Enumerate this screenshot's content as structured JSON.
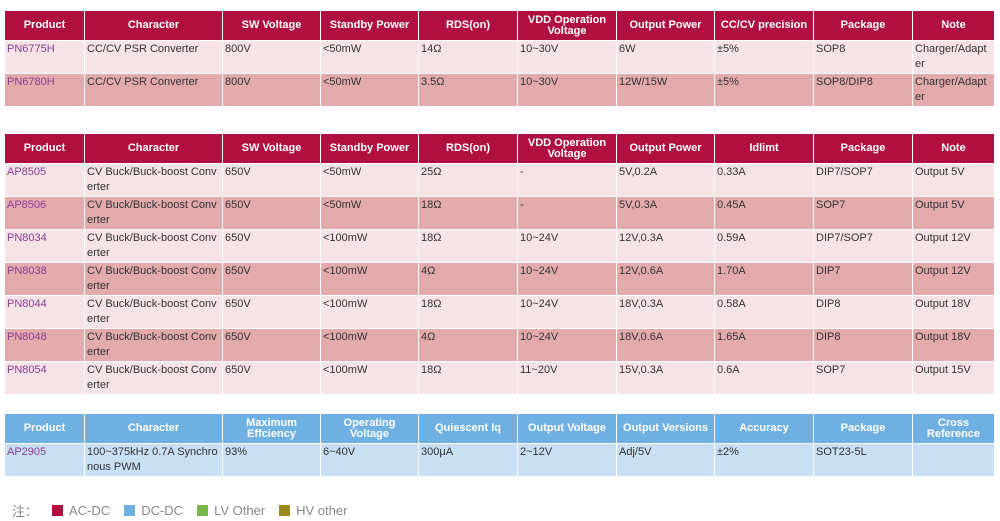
{
  "table1": {
    "headers": [
      "Product",
      "Character",
      "SW Voltage",
      "Standby Power",
      "RDS(on)",
      "VDD Operation Voltage",
      "Output Power",
      "CC/CV precision",
      "Package",
      "Note"
    ],
    "rows": [
      [
        "PN6775H",
        "CC/CV PSR Converter",
        "800V",
        "<50mW",
        "14Ω",
        "10~30V",
        "6W",
        "±5%",
        "SOP8",
        "Charger/Adapter"
      ],
      [
        "PN6780H",
        "CC/CV PSR Converter",
        "800V",
        "<50mW",
        "3.5Ω",
        "10~30V",
        "12W/15W",
        "±5%",
        "SOP8/DIP8",
        "Charger/Adapter"
      ]
    ]
  },
  "table2": {
    "headers": [
      "Product",
      "Character",
      "SW Voltage",
      "Standby Power",
      "RDS(on)",
      "VDD Operation Voltage",
      "Output Power",
      "Idlimt",
      "Package",
      "Note"
    ],
    "rows": [
      [
        "AP8505",
        "CV Buck/Buck-boost Converter",
        "650V",
        "<50mW",
        "25Ω",
        "-",
        "5V,0.2A",
        "0.33A",
        "DIP7/SOP7",
        "Output 5V"
      ],
      [
        "AP8506",
        "CV Buck/Buck-boost Converter",
        "650V",
        "<50mW",
        "18Ω",
        "-",
        "5V,0.3A",
        "0.45A",
        "SOP7",
        "Output 5V"
      ],
      [
        "PN8034",
        "CV Buck/Buck-boost Converter",
        "650V",
        "<100mW",
        "18Ω",
        "10~24V",
        "12V,0.3A",
        "0.59A",
        "DIP7/SOP7",
        "Output 12V"
      ],
      [
        "PN8038",
        "CV Buck/Buck-boost Converter",
        "650V",
        "<100mW",
        "4Ω",
        "10~24V",
        "12V,0.6A",
        "1.70A",
        "DIP7",
        "Output 12V"
      ],
      [
        "PN8044",
        "CV Buck/Buck-boost Converter",
        "650V",
        "<100mW",
        "18Ω",
        "10~24V",
        "18V,0.3A",
        "0.58A",
        "DIP8",
        "Output 18V"
      ],
      [
        "PN8048",
        "CV Buck/Buck-boost Converter",
        "650V",
        "<100mW",
        "4Ω",
        "10~24V",
        "18V,0.6A",
        "1.65A",
        "DIP8",
        "Output 18V"
      ],
      [
        "PN8054",
        "CV Buck/Buck-boost Converter",
        "650V",
        "<100mW",
        "18Ω",
        "11~20V",
        "15V,0.3A",
        "0.6A",
        "SOP7",
        "Output 15V"
      ]
    ]
  },
  "table3": {
    "headers": [
      "Product",
      "Character",
      "Maximum Effciency",
      "Operating Voltage",
      "Quiescent Iq",
      "Output Voltage",
      "Output Versions",
      "Accuracy",
      "Package",
      "Cross Reference"
    ],
    "rows": [
      [
        "AP2905",
        "100~375kHz 0.7A Synchronous PWM",
        "93%",
        "6~40V",
        "300μA",
        "2~12V",
        "Adj/5V",
        "±2%",
        "SOT23-5L",
        ""
      ]
    ]
  },
  "legend": {
    "label": "注：",
    "items": [
      {
        "text": "AC-DC",
        "color": "#b0103f"
      },
      {
        "text": "DC-DC",
        "color": "#6fb0e2"
      },
      {
        "text": "LV Other",
        "color": "#7ab648"
      },
      {
        "text": "HV other",
        "color": "#9a8a1e"
      }
    ]
  }
}
